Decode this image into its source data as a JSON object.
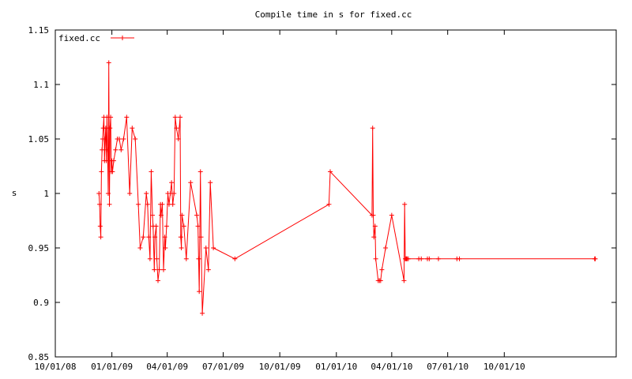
{
  "chart_data": {
    "type": "line",
    "title": "Compile time in s for fixed.cc",
    "xlabel": "",
    "ylabel": "s",
    "ylim": [
      0.85,
      1.15
    ],
    "yticks": [
      0.85,
      0.9,
      0.95,
      1,
      1.05,
      1.1,
      1.15
    ],
    "ytick_labels": [
      "0.85",
      "0.9",
      "0.95",
      "1",
      "1.05",
      "1.1",
      "1.15"
    ],
    "xlim": [
      "2008-10-01",
      "2011-04-01"
    ],
    "xticks": [
      "2008-10-01",
      "2009-01-01",
      "2009-04-01",
      "2009-07-01",
      "2009-10-01",
      "2010-01-01",
      "2010-04-01",
      "2010-07-01",
      "2010-10-01"
    ],
    "xtick_labels": [
      "10/01/08",
      "01/01/09",
      "04/01/09",
      "07/01/09",
      "10/01/09",
      "01/01/10",
      "04/01/10",
      "07/01/10",
      "10/01/10"
    ],
    "legend_position": "top-left",
    "grid": false,
    "series": [
      {
        "name": "fixed.cc",
        "color": "#ff0000",
        "x": [
          "2008-12-11",
          "2008-12-12",
          "2008-12-13",
          "2008-12-14",
          "2008-12-15",
          "2008-12-16",
          "2008-12-17",
          "2008-12-18",
          "2008-12-19",
          "2008-12-20",
          "2008-12-21",
          "2008-12-22",
          "2008-12-23",
          "2008-12-24",
          "2008-12-25",
          "2008-12-26",
          "2008-12-27",
          "2008-12-28",
          "2008-12-29",
          "2008-12-30",
          "2008-12-31",
          "2009-01-01",
          "2009-01-02",
          "2009-01-04",
          "2009-01-07",
          "2009-01-10",
          "2009-01-13",
          "2009-01-16",
          "2009-01-20",
          "2009-01-25",
          "2009-01-30",
          "2009-02-03",
          "2009-02-08",
          "2009-02-13",
          "2009-02-16",
          "2009-02-21",
          "2009-02-26",
          "2009-02-28",
          "2009-03-02",
          "2009-03-04",
          "2009-03-06",
          "2009-03-08",
          "2009-03-09",
          "2009-03-11",
          "2009-03-12",
          "2009-03-14",
          "2009-03-15",
          "2009-03-17",
          "2009-03-19",
          "2009-03-21",
          "2009-03-22",
          "2009-03-24",
          "2009-03-26",
          "2009-03-28",
          "2009-03-29",
          "2009-03-31",
          "2009-04-02",
          "2009-04-04",
          "2009-04-06",
          "2009-04-08",
          "2009-04-10",
          "2009-04-12",
          "2009-04-14",
          "2009-04-16",
          "2009-04-19",
          "2009-04-22",
          "2009-04-23",
          "2009-04-24",
          "2009-04-25",
          "2009-04-28",
          "2009-05-02",
          "2009-05-09",
          "2009-05-19",
          "2009-05-21",
          "2009-05-22",
          "2009-05-23",
          "2009-05-25",
          "2009-05-26",
          "2009-05-28",
          "2009-06-03",
          "2009-06-07",
          "2009-06-10",
          "2009-06-15",
          "2009-07-20",
          "2009-12-20",
          "2009-12-22",
          "2010-02-28",
          "2010-03-01",
          "2010-03-02",
          "2010-03-03",
          "2010-03-05",
          "2010-03-06",
          "2010-03-10",
          "2010-03-12",
          "2010-03-14",
          "2010-03-16",
          "2010-03-22",
          "2010-04-01",
          "2010-04-21",
          "2010-04-22",
          "2010-04-23",
          "2010-04-24",
          "2010-04-25",
          "2010-04-26",
          "2010-04-28",
          "2010-05-15",
          "2010-05-19",
          "2010-05-29",
          "2010-06-01",
          "2010-06-16",
          "2010-07-16",
          "2010-07-20",
          "2011-02-25",
          "2011-02-26"
        ],
        "values": [
          1.0,
          0.99,
          0.97,
          0.96,
          1.02,
          1.04,
          1.05,
          1.06,
          1.07,
          1.03,
          1.05,
          1.06,
          1.03,
          1.07,
          1.04,
          1.0,
          1.12,
          0.99,
          1.06,
          1.07,
          1.02,
          1.03,
          1.02,
          1.03,
          1.04,
          1.05,
          1.05,
          1.04,
          1.05,
          1.07,
          1.0,
          1.06,
          1.05,
          0.99,
          0.95,
          0.96,
          1.0,
          0.99,
          0.96,
          0.94,
          1.02,
          0.98,
          0.97,
          0.93,
          0.96,
          0.97,
          0.94,
          0.92,
          0.93,
          0.99,
          0.98,
          0.99,
          0.93,
          0.96,
          0.95,
          0.97,
          1.0,
          0.99,
          1.0,
          1.01,
          0.99,
          1.0,
          1.07,
          1.06,
          1.05,
          1.07,
          0.96,
          0.95,
          0.98,
          0.97,
          0.94,
          1.01,
          0.98,
          0.97,
          0.94,
          0.91,
          1.02,
          0.96,
          0.89,
          0.95,
          0.93,
          1.01,
          0.95,
          0.94,
          0.99,
          1.02,
          0.98,
          1.06,
          0.98,
          0.96,
          0.97,
          0.94,
          0.92,
          0.92,
          0.92,
          0.93,
          0.95,
          0.98,
          0.92,
          0.99,
          0.94,
          0.94,
          0.94,
          0.94,
          0.94,
          0.94,
          0.94,
          0.94,
          0.94,
          0.94,
          0.94,
          0.94,
          0.94,
          0.94
        ]
      }
    ]
  }
}
